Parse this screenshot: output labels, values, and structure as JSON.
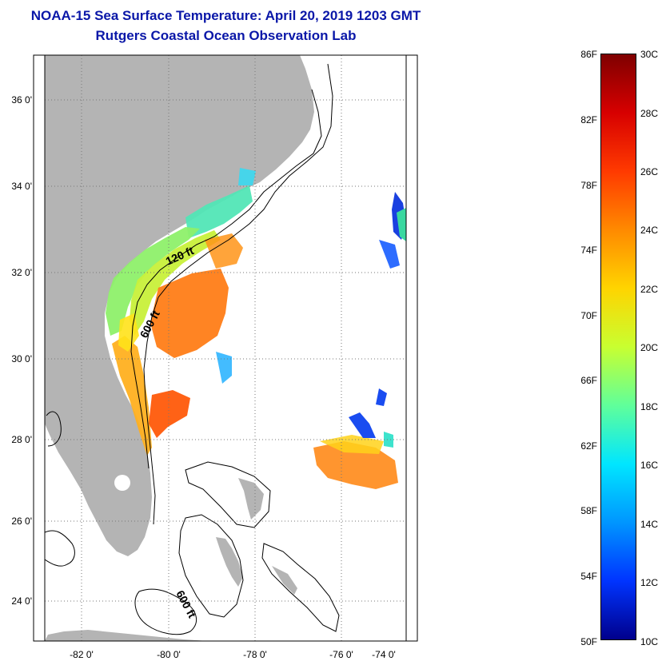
{
  "title": {
    "line1": "NOAA-15 Sea Surface Temperature:  April 20, 2019 1203 GMT",
    "line2": "Rutgers Coastal Ocean Observation Lab"
  },
  "map": {
    "lon_labels": [
      "-82 0'",
      "-80 0'",
      "-78 0'",
      "-76 0'",
      "-74 0'"
    ],
    "lat_labels": [
      "36 0'",
      "34 0'",
      "32 0'",
      "30 0'",
      "28 0'",
      "26 0'",
      "24 0'"
    ],
    "depth_labels": [
      "120 ft",
      "600 ft",
      "600 ft"
    ],
    "colors": {
      "land": "#b4b4b4",
      "grid": "#777777",
      "contour": "#000000"
    }
  },
  "colorbar": {
    "fahrenheit_labels": [
      "86F",
      "82F",
      "78F",
      "74F",
      "70F",
      "66F",
      "62F",
      "58F",
      "54F",
      "50F"
    ],
    "celsius_labels": [
      "30C",
      "28C",
      "26C",
      "24C",
      "22C",
      "20C",
      "18C",
      "16C",
      "14C",
      "12C",
      "10C"
    ],
    "gradient_colors": [
      "#7f0000",
      "#d70000",
      "#ff3a00",
      "#ff8a00",
      "#ffd400",
      "#c8ff30",
      "#60ff9a",
      "#00e6ff",
      "#0096ff",
      "#0034ff",
      "#00008c"
    ]
  }
}
